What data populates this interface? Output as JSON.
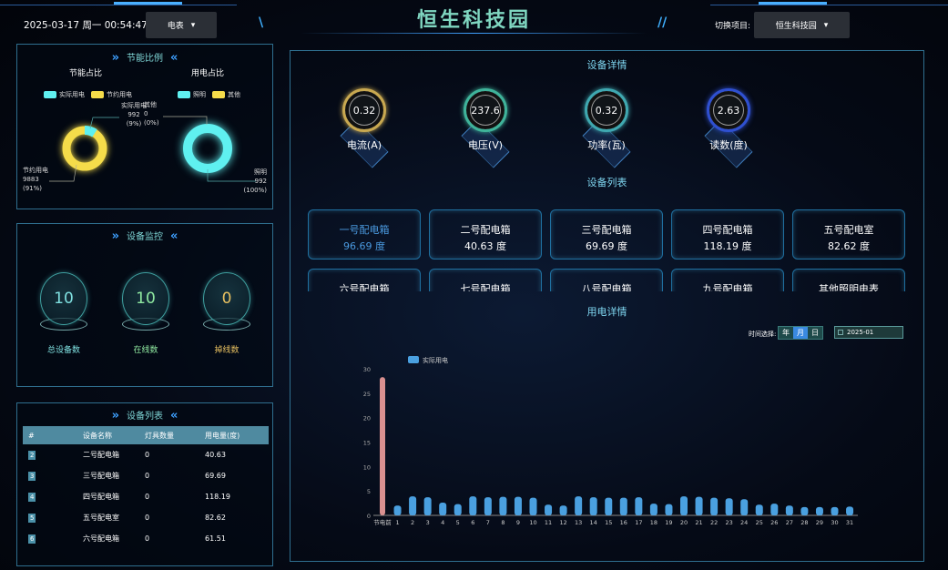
{
  "header": {
    "datetime": "2025-03-17 周一 00:54:47",
    "meter_select": "电表",
    "title": "恒生科技园",
    "switch_label": "切换项目:",
    "project_select": "恒生科技园"
  },
  "energy_ratio": {
    "title": "节能比例",
    "left": {
      "title": "节能占比",
      "legend": [
        "实际用电",
        "节约用电"
      ],
      "slices": [
        {
          "name": "实际用电",
          "value": 992,
          "pct": "(9%)",
          "color": "#5ff0f0"
        },
        {
          "name": "节约用电",
          "value": 9883,
          "pct": "(91%)",
          "color": "#f5dc4a"
        }
      ]
    },
    "right": {
      "title": "用电占比",
      "legend": [
        "照明",
        "其他"
      ],
      "slices": [
        {
          "name": "照明",
          "value": 992,
          "pct": "(100%)",
          "color": "#5ff0f0"
        },
        {
          "name": "其他",
          "value": 0,
          "pct": "(0%)",
          "color": "#f5dc4a"
        }
      ]
    }
  },
  "monitor": {
    "title": "设备监控",
    "items": [
      {
        "label": "总设备数",
        "value": "10",
        "color": "#7fe0e0"
      },
      {
        "label": "在线数",
        "value": "10",
        "color": "#8fe8a0"
      },
      {
        "label": "掉线数",
        "value": "0",
        "color": "#e8c060"
      }
    ]
  },
  "device_table": {
    "title": "设备列表",
    "columns": [
      "#",
      "设备名称",
      "灯具数量",
      "用电量(度)"
    ],
    "rows": [
      [
        "2",
        "二号配电箱",
        "0",
        "40.63"
      ],
      [
        "3",
        "三号配电箱",
        "0",
        "69.69"
      ],
      [
        "4",
        "四号配电箱",
        "0",
        "118.19"
      ],
      [
        "5",
        "五号配电室",
        "0",
        "82.62"
      ],
      [
        "6",
        "六号配电箱",
        "0",
        "61.51"
      ]
    ]
  },
  "detail": {
    "title": "设备详情",
    "gauges": [
      {
        "value": "0.32",
        "label": "电流(A)",
        "color": "#c8a850"
      },
      {
        "value": "237.6",
        "label": "电压(V)",
        "color": "#3fb39a"
      },
      {
        "value": "0.32",
        "label": "功率(瓦)",
        "color": "#3fa8b0"
      },
      {
        "value": "2.63",
        "label": "读数(度)",
        "color": "#2f50d0"
      }
    ]
  },
  "device_list": {
    "title": "设备列表",
    "cards": [
      {
        "name": "一号配电箱",
        "value": "96.69 度",
        "active": true
      },
      {
        "name": "二号配电箱",
        "value": "40.63 度"
      },
      {
        "name": "三号配电箱",
        "value": "69.69 度"
      },
      {
        "name": "四号配电箱",
        "value": "118.19 度"
      },
      {
        "name": "五号配电室",
        "value": "82.62 度"
      },
      {
        "name": "六号配电箱",
        "value": ""
      },
      {
        "name": "七号配电箱",
        "value": ""
      },
      {
        "name": "八号配电箱",
        "value": ""
      },
      {
        "name": "九号配电箱",
        "value": ""
      },
      {
        "name": "其他照明电表",
        "value": ""
      }
    ]
  },
  "usage": {
    "title": "用电详情",
    "time_label": "时间选择:",
    "modes": [
      "年",
      "月",
      "日"
    ],
    "active_mode": "月",
    "date": "2025-01"
  },
  "chart_data": {
    "type": "bar",
    "legend": "实际用电",
    "categories": [
      "节电前",
      "1",
      "2",
      "3",
      "4",
      "5",
      "6",
      "7",
      "8",
      "9",
      "10",
      "11",
      "12",
      "13",
      "14",
      "15",
      "16",
      "17",
      "18",
      "19",
      "20",
      "21",
      "22",
      "23",
      "24",
      "25",
      "26",
      "27",
      "28",
      "29",
      "30",
      "31"
    ],
    "values": [
      28.3,
      2.0,
      3.9,
      3.7,
      2.6,
      2.3,
      3.9,
      3.7,
      3.8,
      3.8,
      3.6,
      2.2,
      2.0,
      3.9,
      3.7,
      3.6,
      3.6,
      3.7,
      2.4,
      2.3,
      3.9,
      3.8,
      3.6,
      3.5,
      3.3,
      2.2,
      2.4,
      2.0,
      1.7,
      1.7,
      1.7,
      1.8
    ],
    "ylim": [
      0,
      30
    ],
    "yticks": [
      0,
      5,
      10,
      15,
      20,
      25,
      30
    ],
    "colors": {
      "before": "#d99090",
      "bar": "#4aa0e0"
    }
  }
}
